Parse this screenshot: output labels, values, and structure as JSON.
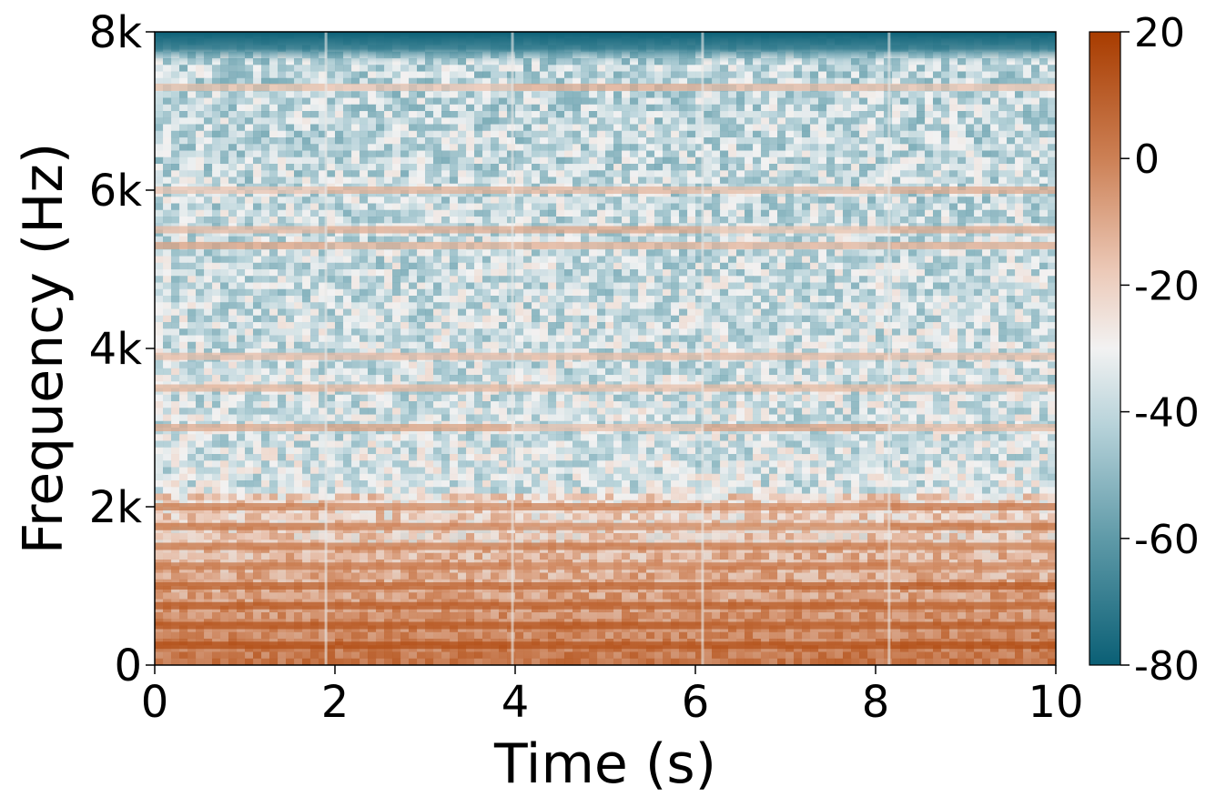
{
  "chart_data": {
    "type": "heatmap",
    "title": "",
    "xlabel": "Time (s)",
    "ylabel": "Frequency (Hz)",
    "xlim": [
      0,
      10
    ],
    "ylim": [
      0,
      8000
    ],
    "x_ticks": [
      {
        "value": 0,
        "label": "0"
      },
      {
        "value": 2,
        "label": "2"
      },
      {
        "value": 4,
        "label": "4"
      },
      {
        "value": 6,
        "label": "6"
      },
      {
        "value": 8,
        "label": "8"
      },
      {
        "value": 10,
        "label": "10"
      }
    ],
    "y_ticks": [
      {
        "value": 0,
        "label": "0"
      },
      {
        "value": 2000,
        "label": "2k"
      },
      {
        "value": 4000,
        "label": "4k"
      },
      {
        "value": 6000,
        "label": "6k"
      },
      {
        "value": 8000,
        "label": "8k"
      }
    ],
    "colorbar": {
      "range": [
        -80,
        20
      ],
      "ticks": [
        {
          "value": 20,
          "label": "20"
        },
        {
          "value": 0,
          "label": "0"
        },
        {
          "value": -20,
          "label": "-20"
        },
        {
          "value": -40,
          "label": "-40"
        },
        {
          "value": -60,
          "label": "-60"
        },
        {
          "value": -80,
          "label": "-80"
        }
      ],
      "colormap": [
        {
          "value": -80,
          "color": "#0a5f75"
        },
        {
          "value": -60,
          "color": "#5f9aa8"
        },
        {
          "value": -42,
          "color": "#b8d3da"
        },
        {
          "value": -30,
          "color": "#f2f2f2"
        },
        {
          "value": -18,
          "color": "#eccab9"
        },
        {
          "value": 0,
          "color": "#cc8055"
        },
        {
          "value": 20,
          "color": "#a83c00"
        }
      ]
    },
    "segments": [
      {
        "t_start": 0,
        "t_end": 1.9
      },
      {
        "t_start": 1.9,
        "t_end": 3.97
      },
      {
        "t_start": 3.97,
        "t_end": 6.08
      },
      {
        "t_start": 6.08,
        "t_end": 8.15
      },
      {
        "t_start": 8.15,
        "t_end": 10
      }
    ],
    "harmonic_bands_hz": [
      250,
      500,
      750,
      1000,
      1250,
      1500,
      1750,
      2000,
      3000,
      3500,
      3900,
      5300,
      5500,
      6000,
      7300
    ],
    "notes": "Spectrogram in dB; strong energy below ~1.5 kHz, horizontal harmonic bands, low energy above ~7.7 kHz."
  }
}
